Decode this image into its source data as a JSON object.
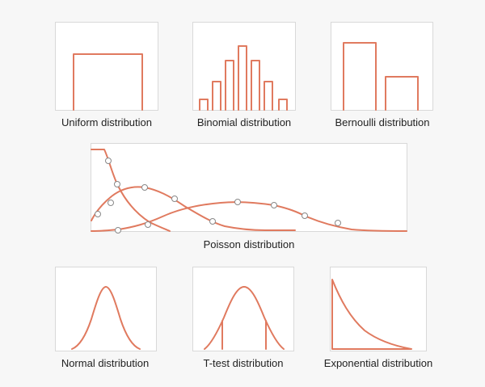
{
  "accent_color": "#e07a5f",
  "marker_stroke": "#888888",
  "panels": {
    "uniform": {
      "caption": "Uniform distribution"
    },
    "binomial": {
      "caption": "Binomial distribution"
    },
    "bernoulli": {
      "caption": "Bernoulli distribution"
    },
    "poisson": {
      "caption": "Poisson distribution"
    },
    "normal": {
      "caption": "Normal distribution"
    },
    "ttest": {
      "caption": "T-test distribution"
    },
    "exponential": {
      "caption": "Exponential distribution"
    }
  }
}
